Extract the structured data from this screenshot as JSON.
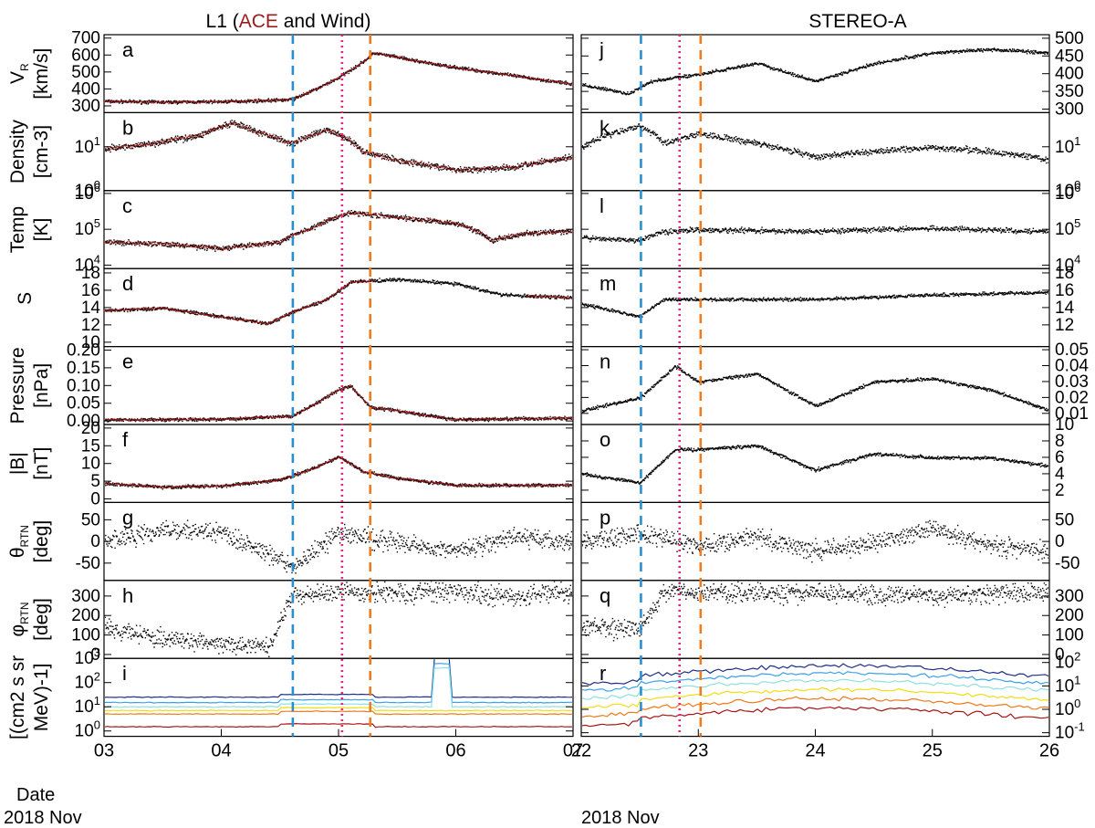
{
  "header": {
    "left_title_prefix": "L1 (",
    "left_title_highlight": "ACE",
    "left_title_suffix": " and Wind)",
    "right_title": "STEREO-A",
    "highlight_color": "#9b1b1b"
  },
  "x_axis": {
    "date_word": "Date",
    "month_label": "2018 Nov",
    "left_ticks": [
      "03",
      "04",
      "05",
      "06",
      "07"
    ],
    "right_ticks": [
      "22",
      "23",
      "24",
      "25",
      "26"
    ]
  },
  "markers": {
    "left": [
      {
        "day": 4.61,
        "style": "dashed",
        "color": "#2a8fd0"
      },
      {
        "day": 5.03,
        "style": "dotted",
        "color": "#e0257a"
      },
      {
        "day": 5.27,
        "style": "dashed",
        "color": "#f07c1e"
      }
    ],
    "right": [
      {
        "day": 22.51,
        "style": "dashed",
        "color": "#2a8fd0"
      },
      {
        "day": 22.84,
        "style": "dotted",
        "color": "#e0257a"
      },
      {
        "day": 23.02,
        "style": "dashed",
        "color": "#f07c1e"
      }
    ]
  },
  "colors": {
    "black_series": "#000000",
    "ace_series": "#a31515",
    "energy_channels": [
      "#1f2f86",
      "#3aa0e8",
      "#8ee0e0",
      "#f2dd16",
      "#f07a1a",
      "#a81414"
    ]
  },
  "chart_data": [
    {
      "type": "scatter",
      "panel_letter": "a",
      "column": "L1",
      "ylabel": [
        "V",
        "R",
        "[km/s]"
      ],
      "ylim": [
        260,
        720
      ],
      "ticks": [
        300,
        400,
        500,
        600,
        700
      ],
      "series": [
        {
          "values_by_day": [
            [
              3.0,
              330
            ],
            [
              3.5,
              325
            ],
            [
              4.0,
              328
            ],
            [
              4.4,
              335
            ],
            [
              4.6,
              340
            ],
            [
              4.8,
              400
            ],
            [
              5.0,
              470
            ],
            [
              5.2,
              560
            ],
            [
              5.3,
              615
            ],
            [
              5.5,
              590
            ],
            [
              5.8,
              550
            ],
            [
              6.2,
              510
            ],
            [
              6.6,
              470
            ],
            [
              7.0,
              430
            ]
          ]
        }
      ]
    },
    {
      "type": "scatter",
      "panel_letter": "b",
      "column": "L1",
      "ylabel": [
        "Density",
        "[cm-3]"
      ],
      "scale": "log",
      "ylim": [
        1,
        60
      ],
      "ticks": [
        1,
        10
      ],
      "series": [
        {
          "values_by_day": [
            [
              3.0,
              9
            ],
            [
              3.4,
              12
            ],
            [
              3.8,
              18
            ],
            [
              4.1,
              35
            ],
            [
              4.3,
              22
            ],
            [
              4.6,
              12
            ],
            [
              4.9,
              25
            ],
            [
              5.2,
              8
            ],
            [
              5.5,
              5
            ],
            [
              6.0,
              3
            ],
            [
              6.5,
              3.5
            ],
            [
              7.0,
              6
            ]
          ]
        }
      ]
    },
    {
      "type": "scatter",
      "panel_letter": "c",
      "column": "L1",
      "ylabel": [
        "Temp",
        "[K]"
      ],
      "scale": "log",
      "ylim": [
        8000,
        1200000
      ],
      "ticks": [
        10000,
        100000,
        1000000
      ],
      "series": [
        {
          "values_by_day": [
            [
              3.0,
              45000
            ],
            [
              3.5,
              40000
            ],
            [
              4.0,
              30000
            ],
            [
              4.5,
              45000
            ],
            [
              4.8,
              120000
            ],
            [
              5.1,
              300000
            ],
            [
              5.5,
              220000
            ],
            [
              6.0,
              150000
            ],
            [
              6.3,
              50000
            ],
            [
              6.6,
              80000
            ],
            [
              7.0,
              90000
            ]
          ]
        }
      ]
    },
    {
      "type": "scatter",
      "panel_letter": "d",
      "column": "L1",
      "ylabel": [
        "S"
      ],
      "ylim": [
        9.5,
        18.5
      ],
      "ticks": [
        10,
        12,
        14,
        16,
        18
      ],
      "series": [
        {
          "values_by_day": [
            [
              3.0,
              13.7
            ],
            [
              3.5,
              14.0
            ],
            [
              4.0,
              13.0
            ],
            [
              4.4,
              12.2
            ],
            [
              4.6,
              13.5
            ],
            [
              4.9,
              15.0
            ],
            [
              5.1,
              17.0
            ],
            [
              5.5,
              17.3
            ],
            [
              6.0,
              16.8
            ],
            [
              6.4,
              15.5
            ],
            [
              7.0,
              15.2
            ]
          ]
        }
      ]
    },
    {
      "type": "scatter",
      "panel_letter": "e",
      "column": "L1",
      "ylabel": [
        "Pressure",
        "[nPa]"
      ],
      "ylim": [
        -0.01,
        0.21
      ],
      "ticks": [
        0.0,
        0.05,
        0.1,
        0.15,
        0.2
      ],
      "tick_labels": [
        "0.00",
        "0.05",
        "0.10",
        "0.15",
        "0.20"
      ],
      "series": [
        {
          "values_by_day": [
            [
              3.0,
              0.005
            ],
            [
              4.0,
              0.006
            ],
            [
              4.6,
              0.015
            ],
            [
              4.8,
              0.05
            ],
            [
              5.0,
              0.09
            ],
            [
              5.1,
              0.1
            ],
            [
              5.27,
              0.04
            ],
            [
              5.5,
              0.03
            ],
            [
              6.0,
              0.005
            ],
            [
              7.0,
              0.01
            ]
          ]
        }
      ]
    },
    {
      "type": "scatter",
      "panel_letter": "f",
      "column": "L1",
      "ylabel": [
        "|B|",
        "[nT]"
      ],
      "ylim": [
        -1,
        21
      ],
      "ticks": [
        0,
        5,
        10,
        15,
        20
      ],
      "series": [
        {
          "values_by_day": [
            [
              3.0,
              4.5
            ],
            [
              3.5,
              3.5
            ],
            [
              4.0,
              3.8
            ],
            [
              4.5,
              5.5
            ],
            [
              4.8,
              9
            ],
            [
              5.0,
              12
            ],
            [
              5.2,
              8
            ],
            [
              5.5,
              6
            ],
            [
              6.0,
              4
            ],
            [
              7.0,
              4
            ]
          ]
        }
      ]
    },
    {
      "type": "scatter",
      "panel_letter": "g",
      "column": "L1",
      "ylabel": [
        "θ",
        "RTN",
        "[deg]"
      ],
      "ylim": [
        -90,
        90
      ],
      "ticks": [
        -50,
        0,
        50
      ],
      "series": [
        {
          "values_by_day": [
            [
              3.0,
              0
            ],
            [
              3.5,
              30
            ],
            [
              4.0,
              20
            ],
            [
              4.5,
              -40
            ],
            [
              4.6,
              -60
            ],
            [
              5.0,
              20
            ],
            [
              5.5,
              0
            ],
            [
              6.0,
              -20
            ],
            [
              6.5,
              10
            ],
            [
              7.0,
              0
            ]
          ]
        }
      ]
    },
    {
      "type": "scatter",
      "panel_letter": "h",
      "column": "L1",
      "ylabel": [
        "φ",
        "RTN",
        "[deg]"
      ],
      "ylim": [
        -20,
        380
      ],
      "ticks": [
        0,
        100,
        200,
        300
      ],
      "series": [
        {
          "values_by_day": [
            [
              3.0,
              150
            ],
            [
              3.5,
              80
            ],
            [
              4.0,
              60
            ],
            [
              4.4,
              40
            ],
            [
              4.6,
              300
            ],
            [
              5.0,
              320
            ],
            [
              5.5,
              320
            ],
            [
              6.0,
              330
            ],
            [
              6.5,
              300
            ],
            [
              7.0,
              330
            ]
          ]
        }
      ]
    },
    {
      "type": "line",
      "panel_letter": "i",
      "column": "L1",
      "ylabel": [
        "[(cm2 s sr",
        "MeV)-1]"
      ],
      "scale": "log",
      "ylim": [
        0.6,
        1000
      ],
      "ticks": [
        1,
        10,
        100,
        1000
      ],
      "series": [
        {
          "values": [
            25
          ]
        },
        {
          "values": [
            15
          ]
        },
        {
          "values": [
            10
          ]
        },
        {
          "values": [
            7
          ]
        },
        {
          "values": [
            5
          ]
        },
        {
          "values": [
            1.5
          ]
        }
      ]
    },
    {
      "type": "scatter",
      "panel_letter": "j",
      "column": "STEREO-A",
      "ylabel": [],
      "ylim": [
        290,
        510
      ],
      "ticks": [
        300,
        350,
        400,
        450,
        500
      ],
      "series": [
        {
          "values_by_day": [
            [
              22.0,
              370
            ],
            [
              22.4,
              345
            ],
            [
              22.6,
              380
            ],
            [
              23.0,
              400
            ],
            [
              23.5,
              430
            ],
            [
              24.0,
              380
            ],
            [
              24.5,
              430
            ],
            [
              25.0,
              460
            ],
            [
              25.5,
              470
            ],
            [
              26.0,
              460
            ]
          ]
        }
      ]
    },
    {
      "type": "scatter",
      "panel_letter": "k",
      "column": "STEREO-A",
      "ylabel": [],
      "scale": "log",
      "ylim": [
        1,
        60
      ],
      "ticks": [
        1,
        10
      ],
      "series": [
        {
          "values_by_day": [
            [
              22.0,
              10
            ],
            [
              22.5,
              30
            ],
            [
              22.7,
              12
            ],
            [
              23.0,
              20
            ],
            [
              23.5,
              12
            ],
            [
              24.0,
              6
            ],
            [
              24.5,
              8
            ],
            [
              25.0,
              10
            ],
            [
              25.5,
              8
            ],
            [
              26.0,
              5
            ]
          ]
        }
      ]
    },
    {
      "type": "scatter",
      "panel_letter": "l",
      "column": "STEREO-A",
      "ylabel": [],
      "scale": "log",
      "ylim": [
        8000,
        1200000
      ],
      "ticks": [
        10000,
        100000,
        1000000
      ],
      "series": [
        {
          "values_by_day": [
            [
              22.0,
              60000
            ],
            [
              22.5,
              50000
            ],
            [
              22.7,
              90000
            ],
            [
              23.0,
              100000
            ],
            [
              24.0,
              90000
            ],
            [
              25.0,
              110000
            ],
            [
              26.0,
              90000
            ]
          ]
        }
      ]
    },
    {
      "type": "scatter",
      "panel_letter": "m",
      "column": "STEREO-A",
      "ylabel": [],
      "ylim": [
        9.5,
        18.5
      ],
      "ticks": [
        12,
        14,
        16,
        18
      ],
      "series": [
        {
          "values_by_day": [
            [
              22.0,
              14.5
            ],
            [
              22.5,
              13.0
            ],
            [
              22.7,
              15.0
            ],
            [
              23.0,
              15.0
            ],
            [
              24.0,
              15.0
            ],
            [
              25.0,
              15.5
            ],
            [
              26.0,
              15.8
            ]
          ]
        }
      ]
    },
    {
      "type": "scatter",
      "panel_letter": "n",
      "column": "STEREO-A",
      "ylabel": [],
      "ylim": [
        0.003,
        0.052
      ],
      "ticks": [
        0.01,
        0.02,
        0.03,
        0.04,
        0.05
      ],
      "series": [
        {
          "values_by_day": [
            [
              22.0,
              0.012
            ],
            [
              22.5,
              0.02
            ],
            [
              22.8,
              0.04
            ],
            [
              23.0,
              0.03
            ],
            [
              23.5,
              0.035
            ],
            [
              24.0,
              0.015
            ],
            [
              24.5,
              0.03
            ],
            [
              25.0,
              0.032
            ],
            [
              25.5,
              0.025
            ],
            [
              26.0,
              0.012
            ]
          ]
        }
      ]
    },
    {
      "type": "scatter",
      "panel_letter": "o",
      "column": "STEREO-A",
      "ylabel": [],
      "ylim": [
        0.5,
        10
      ],
      "ticks": [
        2,
        4,
        6,
        8,
        10
      ],
      "series": [
        {
          "values_by_day": [
            [
              22.0,
              4
            ],
            [
              22.5,
              3
            ],
            [
              22.8,
              7
            ],
            [
              23.0,
              7
            ],
            [
              23.5,
              7.5
            ],
            [
              24.0,
              4.5
            ],
            [
              24.5,
              6.5
            ],
            [
              25.0,
              6
            ],
            [
              25.5,
              6
            ],
            [
              26.0,
              5
            ]
          ]
        }
      ]
    },
    {
      "type": "scatter",
      "panel_letter": "p",
      "column": "STEREO-A",
      "ylabel": [],
      "ylim": [
        -90,
        90
      ],
      "ticks": [
        -50,
        0,
        50
      ],
      "series": [
        {
          "values_by_day": [
            [
              22.0,
              0
            ],
            [
              22.5,
              20
            ],
            [
              23.0,
              -10
            ],
            [
              23.5,
              10
            ],
            [
              24.0,
              -20
            ],
            [
              24.5,
              0
            ],
            [
              25.0,
              30
            ],
            [
              25.5,
              -10
            ],
            [
              26.0,
              -20
            ]
          ]
        }
      ]
    },
    {
      "type": "scatter",
      "panel_letter": "q",
      "column": "STEREO-A",
      "ylabel": [],
      "ylim": [
        -20,
        380
      ],
      "ticks": [
        0,
        100,
        200,
        300
      ],
      "series": [
        {
          "values_by_day": [
            [
              22.0,
              150
            ],
            [
              22.5,
              130
            ],
            [
              22.7,
              320
            ],
            [
              23.0,
              320
            ],
            [
              24.0,
              320
            ],
            [
              25.0,
              300
            ],
            [
              26.0,
              330
            ]
          ]
        }
      ]
    },
    {
      "type": "line",
      "panel_letter": "r",
      "column": "STEREO-A",
      "ylabel": [],
      "scale": "log",
      "ylim": [
        0.07,
        150
      ],
      "ticks": [
        0.1,
        1,
        10,
        100
      ],
      "series": [
        {
          "values": [
            50
          ]
        },
        {
          "values": [
            25
          ]
        },
        {
          "values": [
            12
          ]
        },
        {
          "values": [
            5
          ]
        },
        {
          "values": [
            2
          ]
        },
        {
          "values": [
            0.8
          ]
        }
      ]
    }
  ]
}
